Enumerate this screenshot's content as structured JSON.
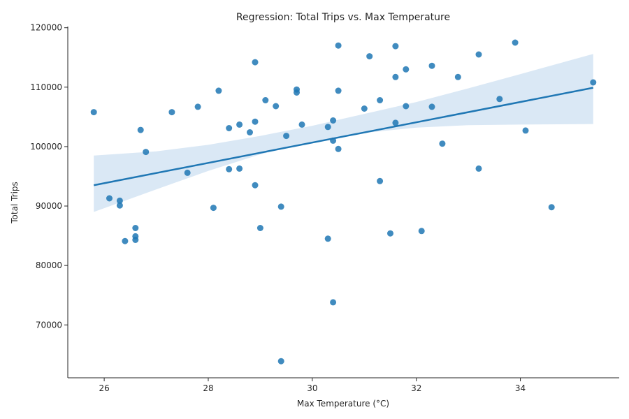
{
  "chart_data": {
    "type": "scatter",
    "title": "Regression: Total Trips vs. Max Temperature",
    "xlabel": "Max Temperature (°C)",
    "ylabel": "Total Trips",
    "xlim": [
      25.3,
      35.9
    ],
    "ylim": [
      61100,
      120200
    ],
    "xticks": [
      26,
      28,
      30,
      32,
      34
    ],
    "yticks": [
      70000,
      80000,
      90000,
      100000,
      110000,
      120000
    ],
    "grid": false,
    "colors": {
      "points": "#1f77b4",
      "line": "#1f77b4",
      "band": "#c6dbef"
    },
    "points": [
      {
        "x": 25.8,
        "y": 105800
      },
      {
        "x": 26.1,
        "y": 91300
      },
      {
        "x": 26.3,
        "y": 90900
      },
      {
        "x": 26.3,
        "y": 90100
      },
      {
        "x": 26.4,
        "y": 84100
      },
      {
        "x": 26.6,
        "y": 86300
      },
      {
        "x": 26.6,
        "y": 84900
      },
      {
        "x": 26.6,
        "y": 84300
      },
      {
        "x": 26.7,
        "y": 102800
      },
      {
        "x": 26.8,
        "y": 99100
      },
      {
        "x": 27.3,
        "y": 105800
      },
      {
        "x": 27.6,
        "y": 95600
      },
      {
        "x": 27.8,
        "y": 106700
      },
      {
        "x": 28.1,
        "y": 89700
      },
      {
        "x": 28.2,
        "y": 109400
      },
      {
        "x": 28.4,
        "y": 103100
      },
      {
        "x": 28.4,
        "y": 96200
      },
      {
        "x": 28.6,
        "y": 103700
      },
      {
        "x": 28.6,
        "y": 96300
      },
      {
        "x": 28.8,
        "y": 102400
      },
      {
        "x": 28.9,
        "y": 114200
      },
      {
        "x": 28.9,
        "y": 104200
      },
      {
        "x": 28.9,
        "y": 93500
      },
      {
        "x": 29.0,
        "y": 86300
      },
      {
        "x": 29.1,
        "y": 107800
      },
      {
        "x": 29.3,
        "y": 106800
      },
      {
        "x": 29.4,
        "y": 89900
      },
      {
        "x": 29.4,
        "y": 63900
      },
      {
        "x": 29.5,
        "y": 101800
      },
      {
        "x": 29.7,
        "y": 109600
      },
      {
        "x": 29.7,
        "y": 109100
      },
      {
        "x": 29.8,
        "y": 103700
      },
      {
        "x": 30.3,
        "y": 103300
      },
      {
        "x": 30.3,
        "y": 84500
      },
      {
        "x": 30.4,
        "y": 104400
      },
      {
        "x": 30.4,
        "y": 101000
      },
      {
        "x": 30.4,
        "y": 73800
      },
      {
        "x": 30.5,
        "y": 117000
      },
      {
        "x": 30.5,
        "y": 109400
      },
      {
        "x": 30.5,
        "y": 99600
      },
      {
        "x": 31.0,
        "y": 106400
      },
      {
        "x": 31.1,
        "y": 115200
      },
      {
        "x": 31.3,
        "y": 107800
      },
      {
        "x": 31.3,
        "y": 94200
      },
      {
        "x": 31.5,
        "y": 85400
      },
      {
        "x": 31.6,
        "y": 116900
      },
      {
        "x": 31.6,
        "y": 111700
      },
      {
        "x": 31.6,
        "y": 104000
      },
      {
        "x": 31.8,
        "y": 113000
      },
      {
        "x": 31.8,
        "y": 106800
      },
      {
        "x": 32.1,
        "y": 85800
      },
      {
        "x": 32.3,
        "y": 113600
      },
      {
        "x": 32.3,
        "y": 106700
      },
      {
        "x": 32.5,
        "y": 100500
      },
      {
        "x": 32.8,
        "y": 111700
      },
      {
        "x": 33.2,
        "y": 115500
      },
      {
        "x": 33.2,
        "y": 96300
      },
      {
        "x": 33.6,
        "y": 108000
      },
      {
        "x": 33.9,
        "y": 117500
      },
      {
        "x": 34.1,
        "y": 102700
      },
      {
        "x": 34.6,
        "y": 89800
      },
      {
        "x": 35.4,
        "y": 110800
      }
    ],
    "regression": {
      "x": [
        25.8,
        35.4
      ],
      "y": [
        93500,
        109900
      ]
    },
    "confidence_band": {
      "x": [
        25.8,
        27.0,
        28.0,
        29.0,
        30.0,
        31.0,
        32.0,
        33.0,
        34.0,
        35.4
      ],
      "lower": [
        89000,
        92800,
        95900,
        98700,
        100700,
        102300,
        103200,
        103600,
        103700,
        103800
      ],
      "upper": [
        98500,
        99200,
        100300,
        101800,
        103500,
        105500,
        107500,
        109800,
        112200,
        115600
      ]
    }
  }
}
